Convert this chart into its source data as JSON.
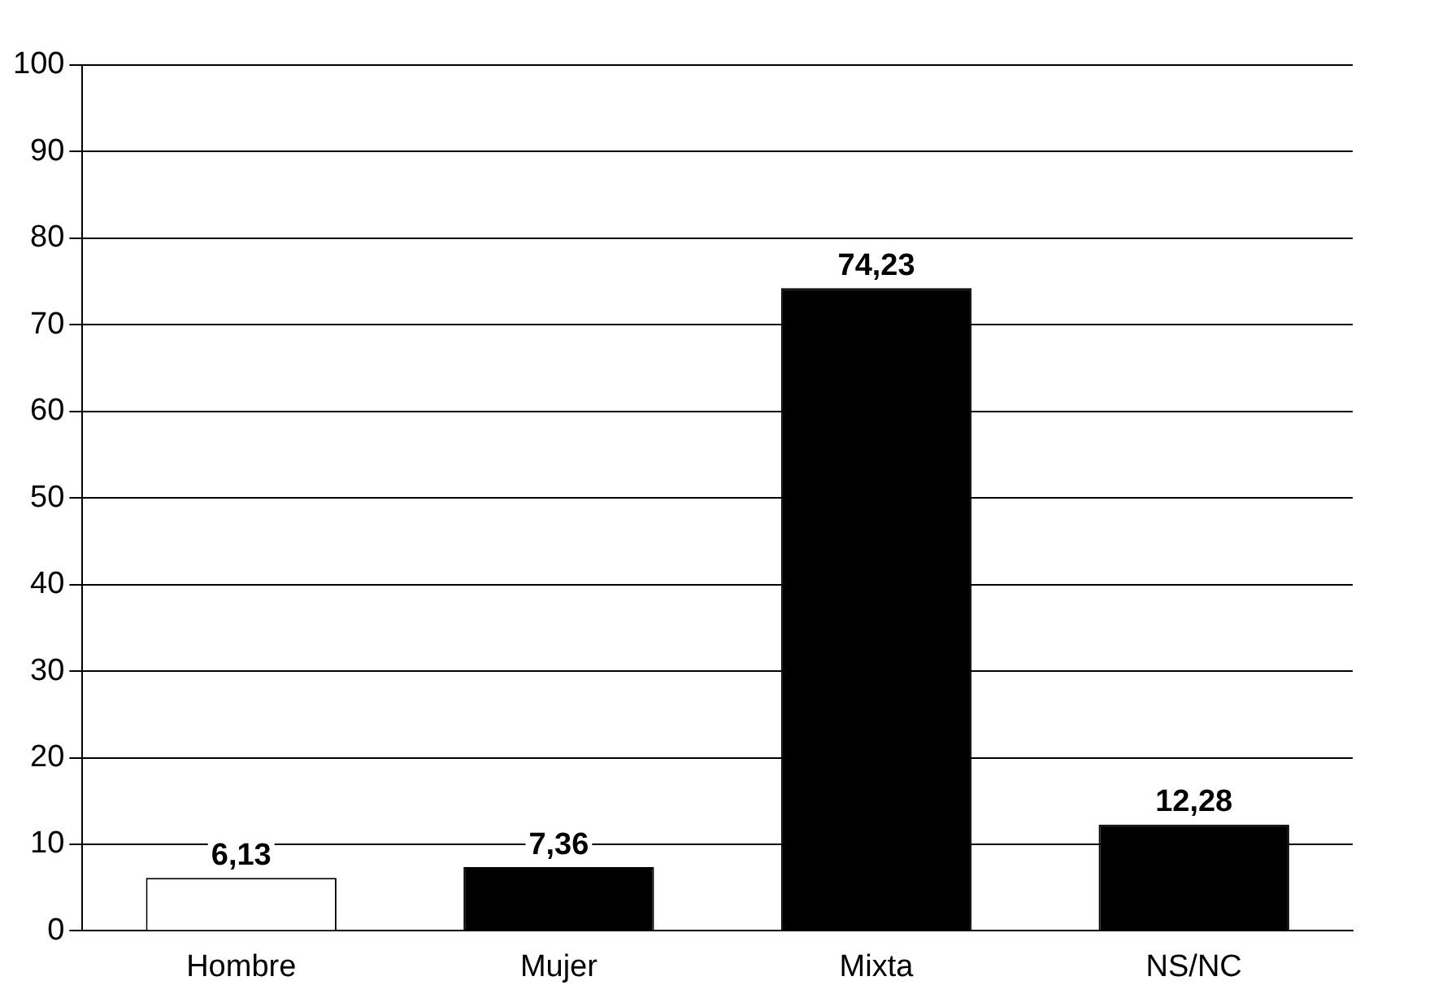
{
  "chart_data": {
    "type": "bar",
    "categories": [
      "Hombre",
      "Mujer",
      "Mixta",
      "NS/NC"
    ],
    "values": [
      6.13,
      7.36,
      74.23,
      12.28
    ],
    "colors": [
      "#ffffff",
      "#000000",
      "#000000",
      "#000000"
    ],
    "value_labels": [
      "6,13",
      "7,36",
      "74,23",
      "12,28"
    ],
    "ylim": [
      0,
      100
    ],
    "yticks": [
      0,
      10,
      20,
      30,
      40,
      50,
      60,
      70,
      80,
      90,
      100
    ],
    "grid": "y",
    "legend": false
  }
}
